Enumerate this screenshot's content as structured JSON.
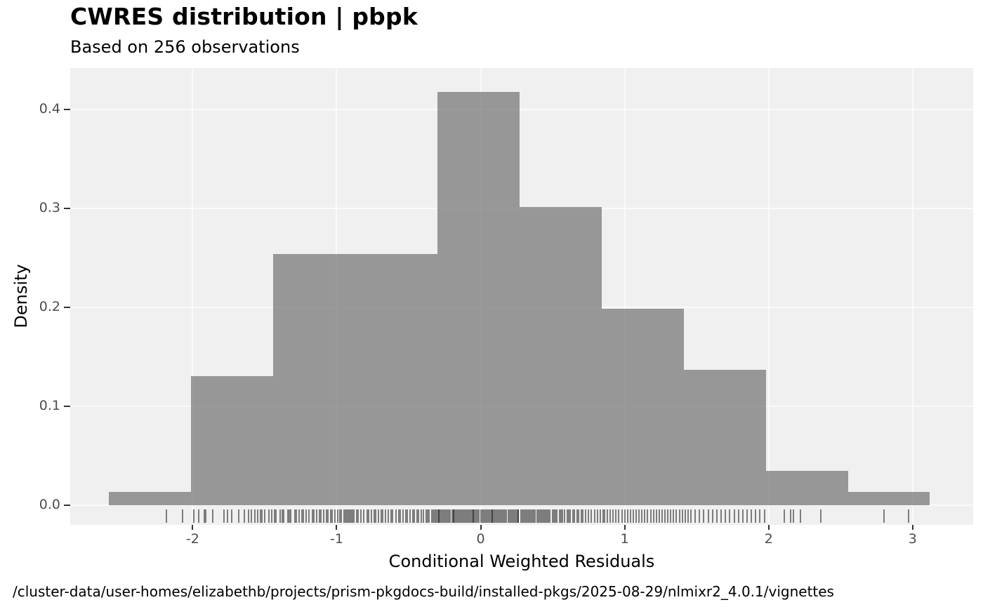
{
  "header": {
    "title": "CWRES distribution | pbpk",
    "subtitle": "Based on 256 observations"
  },
  "caption": "/cluster-data/user-homes/elizabethb/projects/prism-pkgdocs-build/installed-pkgs/2025-08-29/nlmixr2_4.0.1/vignettes",
  "chart_data": {
    "type": "bar",
    "subtype": "histogram-with-rug",
    "title": "CWRES distribution | pbpk",
    "subtitle": "Based on 256 observations",
    "xlabel": "Conditional Weighted Residuals",
    "ylabel": "Density",
    "n_observations": 256,
    "xlim": [
      -2.85,
      3.42
    ],
    "ylim": [
      -0.02,
      0.442
    ],
    "grid": "major-only",
    "legend": "none",
    "xticks": [
      -2,
      -1,
      0,
      1,
      2,
      3
    ],
    "xtick_labels": [
      "-2",
      "-1",
      "0",
      "1",
      "2",
      "3"
    ],
    "yticks": [
      0.0,
      0.1,
      0.2,
      0.3,
      0.4
    ],
    "ytick_labels": [
      "0.0",
      "0.1",
      "0.2",
      "0.3",
      "0.4"
    ],
    "histogram": {
      "bin_start": -2.58,
      "bin_width": 0.57,
      "counts": [
        2,
        19,
        37,
        37,
        61,
        44,
        29,
        20,
        5,
        2
      ],
      "densities": [
        0.0137,
        0.1302,
        0.2536,
        0.2536,
        0.4181,
        0.3016,
        0.1988,
        0.1371,
        0.0343,
        0.0137
      ]
    },
    "rug_x": [
      -2.18,
      -2.07,
      -1.99,
      -1.96,
      -1.92,
      -1.91,
      -1.86,
      -1.78,
      -1.76,
      -1.73,
      -1.68,
      -1.64,
      -1.61,
      -1.59,
      -1.57,
      -1.55,
      -1.53,
      -1.52,
      -1.5,
      -1.47,
      -1.45,
      -1.43,
      -1.42,
      -1.39,
      -1.38,
      -1.37,
      -1.34,
      -1.33,
      -1.32,
      -1.29,
      -1.28,
      -1.26,
      -1.24,
      -1.23,
      -1.21,
      -1.19,
      -1.17,
      -1.16,
      -1.14,
      -1.12,
      -1.11,
      -1.09,
      -1.07,
      -1.06,
      -1.04,
      -1.03,
      -1.01,
      -0.99,
      -0.98,
      -0.97,
      -0.95,
      -0.94,
      -0.93,
      -0.92,
      -0.91,
      -0.9,
      -0.89,
      -0.88,
      -0.86,
      -0.85,
      -0.83,
      -0.81,
      -0.79,
      -0.78,
      -0.76,
      -0.74,
      -0.73,
      -0.71,
      -0.69,
      -0.68,
      -0.66,
      -0.64,
      -0.62,
      -0.61,
      -0.59,
      -0.57,
      -0.56,
      -0.54,
      -0.52,
      -0.51,
      -0.49,
      -0.47,
      -0.46,
      -0.44,
      -0.43,
      -0.41,
      -0.4,
      -0.38,
      -0.37,
      -0.36,
      -0.34,
      -0.33,
      -0.32,
      -0.31,
      -0.3,
      -0.29,
      -0.29,
      -0.28,
      -0.27,
      -0.26,
      -0.25,
      -0.24,
      -0.23,
      -0.22,
      -0.21,
      -0.2,
      -0.19,
      -0.19,
      -0.18,
      -0.17,
      -0.16,
      -0.15,
      -0.14,
      -0.13,
      -0.12,
      -0.11,
      -0.1,
      -0.09,
      -0.08,
      -0.07,
      -0.06,
      -0.05,
      -0.05,
      -0.04,
      -0.03,
      -0.02,
      -0.01,
      0.0,
      0.01,
      0.02,
      0.03,
      0.04,
      0.05,
      0.06,
      0.07,
      0.08,
      0.08,
      0.09,
      0.1,
      0.11,
      0.12,
      0.13,
      0.14,
      0.15,
      0.16,
      0.17,
      0.18,
      0.19,
      0.2,
      0.21,
      0.22,
      0.23,
      0.24,
      0.25,
      0.26,
      0.26,
      0.28,
      0.29,
      0.3,
      0.31,
      0.32,
      0.33,
      0.34,
      0.35,
      0.36,
      0.37,
      0.38,
      0.39,
      0.4,
      0.41,
      0.42,
      0.43,
      0.44,
      0.45,
      0.46,
      0.47,
      0.48,
      0.5,
      0.51,
      0.52,
      0.53,
      0.55,
      0.56,
      0.57,
      0.58,
      0.6,
      0.61,
      0.62,
      0.64,
      0.65,
      0.67,
      0.68,
      0.7,
      0.71,
      0.73,
      0.75,
      0.77,
      0.79,
      0.81,
      0.83,
      0.85,
      0.86,
      0.88,
      0.9,
      0.92,
      0.94,
      0.96,
      0.98,
      1.0,
      1.02,
      1.04,
      1.06,
      1.08,
      1.1,
      1.12,
      1.14,
      1.16,
      1.18,
      1.2,
      1.22,
      1.24,
      1.26,
      1.28,
      1.3,
      1.32,
      1.34,
      1.36,
      1.38,
      1.4,
      1.42,
      1.44,
      1.46,
      1.49,
      1.52,
      1.55,
      1.58,
      1.61,
      1.64,
      1.67,
      1.7,
      1.73,
      1.76,
      1.79,
      1.82,
      1.85,
      1.88,
      1.91,
      1.94,
      1.97,
      2.11,
      2.15,
      2.17,
      2.22,
      2.36,
      2.8,
      2.97
    ],
    "colors": {
      "bar_fill": "#969696",
      "panel_background": "#F0F0F0",
      "gridline": "#FAFAFA",
      "rug": "#4A4A4A",
      "tick_mark": "#333333",
      "tick_label": "#4D4D4D",
      "text": "#000000"
    }
  }
}
